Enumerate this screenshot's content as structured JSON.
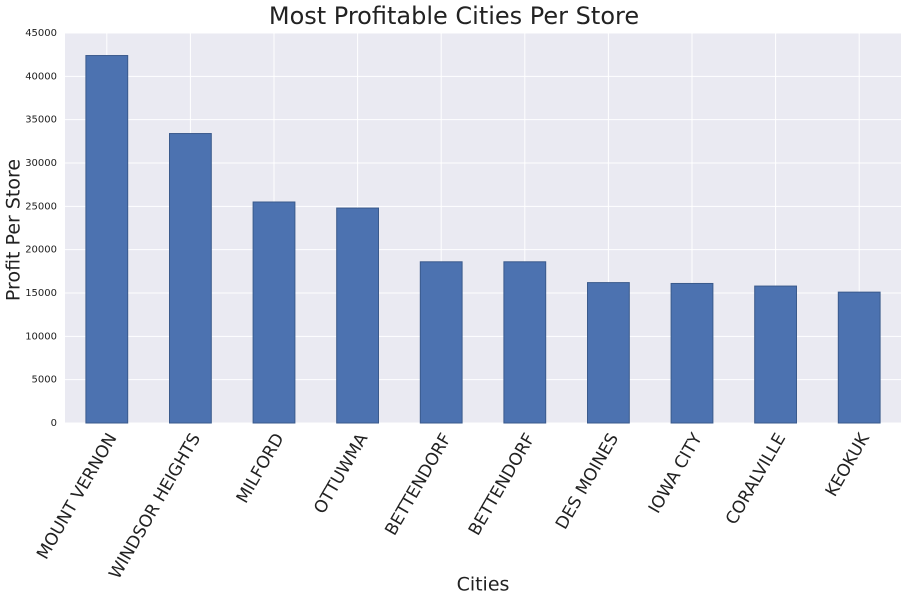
{
  "chart_data": {
    "type": "bar",
    "title": "Most Profitable Cities Per Store",
    "x_label": "Cities",
    "y_label": "Profit Per Store",
    "categories": [
      "MOUNT VERNON",
      "WINDSOR HEIGHTS",
      "MILFORD",
      "OTTUWMA",
      "BETTENDORF",
      "BETTENDORF",
      "DES MOINES",
      "IOWA CITY",
      "CORALVILLE",
      "KEOKUK"
    ],
    "values": [
      42400,
      33400,
      25500,
      24800,
      18600,
      18600,
      16200,
      16100,
      15800,
      15100
    ],
    "color": "#4c72b0",
    "ylim": [
      0,
      45000
    ],
    "yticks": [
      0,
      5000,
      10000,
      15000,
      20000,
      25000,
      30000,
      35000,
      40000,
      45000
    ],
    "grid": true
  }
}
